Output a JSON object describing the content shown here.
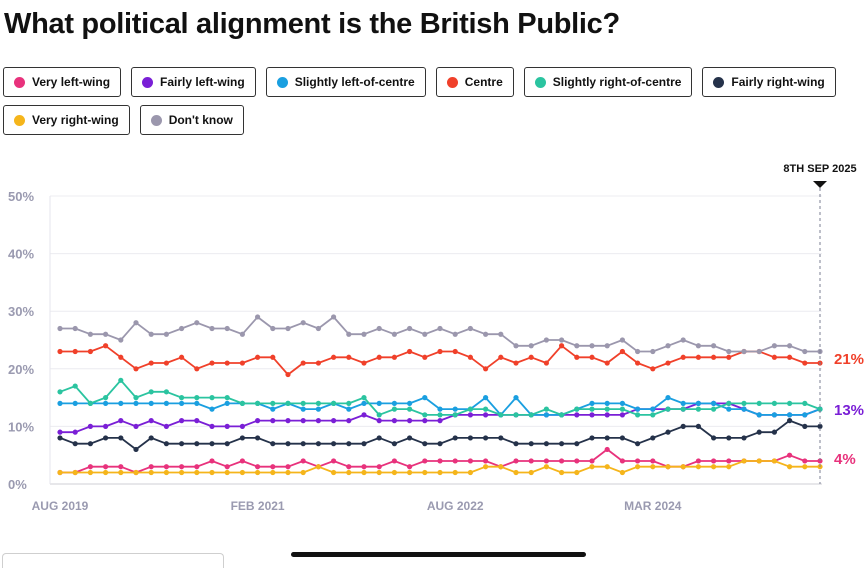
{
  "page": {
    "title": "What political alignment is the British Public?"
  },
  "chart_data": {
    "type": "line",
    "title": "What political alignment is the British Public?",
    "marker_label": "8TH SEP 2025",
    "x_tick_labels": [
      "AUG 2019",
      "FEB 2021",
      "AUG 2022",
      "MAR 2024"
    ],
    "x_tick_positions": [
      0,
      13,
      26,
      39
    ],
    "y_ticks": [
      0,
      10,
      20,
      30,
      40,
      50
    ],
    "y_tick_labels": [
      "0%",
      "10%",
      "20%",
      "30%",
      "40%",
      "50%"
    ],
    "ylim": [
      0,
      50
    ],
    "num_points": 51,
    "series": [
      {
        "name": "Very left-wing",
        "color": "#e8327c",
        "end_label": "4%",
        "values": [
          2,
          2,
          3,
          3,
          3,
          2,
          3,
          3,
          3,
          3,
          4,
          3,
          4,
          3,
          3,
          3,
          4,
          3,
          4,
          3,
          3,
          3,
          4,
          3,
          4,
          4,
          4,
          4,
          4,
          3,
          4,
          4,
          4,
          4,
          4,
          4,
          6,
          4,
          4,
          4,
          3,
          3,
          4,
          4,
          4,
          4,
          4,
          4,
          5,
          4,
          4
        ]
      },
      {
        "name": "Fairly left-wing",
        "color": "#7a1fd6",
        "end_label": "13%",
        "values": [
          9,
          9,
          10,
          10,
          11,
          10,
          11,
          10,
          11,
          11,
          10,
          10,
          10,
          11,
          11,
          11,
          11,
          11,
          11,
          11,
          12,
          11,
          11,
          11,
          11,
          11,
          12,
          12,
          12,
          12,
          12,
          12,
          12,
          12,
          12,
          12,
          12,
          12,
          13,
          13,
          13,
          13,
          14,
          14,
          14,
          13,
          12,
          12,
          12,
          12,
          13
        ]
      },
      {
        "name": "Slightly left-of-centre",
        "color": "#1a9fe0",
        "end_label": "",
        "values": [
          14,
          14,
          14,
          14,
          14,
          14,
          14,
          14,
          14,
          14,
          13,
          14,
          14,
          14,
          13,
          14,
          13,
          13,
          14,
          13,
          14,
          14,
          14,
          14,
          15,
          13,
          13,
          13,
          15,
          12,
          15,
          12,
          12,
          12,
          13,
          14,
          14,
          14,
          13,
          13,
          15,
          14,
          14,
          14,
          13,
          13,
          12,
          12,
          12,
          12,
          13
        ]
      },
      {
        "name": "Centre",
        "color": "#f0402a",
        "end_label": "21%",
        "values": [
          23,
          23,
          23,
          24,
          22,
          20,
          21,
          21,
          22,
          20,
          21,
          21,
          21,
          22,
          22,
          19,
          21,
          21,
          22,
          22,
          21,
          22,
          22,
          23,
          22,
          23,
          23,
          22,
          20,
          22,
          21,
          22,
          21,
          24,
          22,
          22,
          21,
          23,
          21,
          20,
          21,
          22,
          22,
          22,
          22,
          23,
          23,
          22,
          22,
          21,
          21
        ]
      },
      {
        "name": "Slightly right-of-centre",
        "color": "#2bc4a0",
        "end_label": "",
        "values": [
          16,
          17,
          14,
          15,
          18,
          15,
          16,
          16,
          15,
          15,
          15,
          15,
          14,
          14,
          14,
          14,
          14,
          14,
          14,
          14,
          15,
          12,
          13,
          13,
          12,
          12,
          12,
          13,
          13,
          12,
          12,
          12,
          13,
          12,
          13,
          13,
          13,
          13,
          12,
          12,
          13,
          13,
          13,
          13,
          14,
          14,
          14,
          14,
          14,
          14,
          13
        ]
      },
      {
        "name": "Fairly right-wing",
        "color": "#25324a",
        "end_label": "",
        "values": [
          8,
          7,
          7,
          8,
          8,
          6,
          8,
          7,
          7,
          7,
          7,
          7,
          8,
          8,
          7,
          7,
          7,
          7,
          7,
          7,
          7,
          8,
          7,
          8,
          7,
          7,
          8,
          8,
          8,
          8,
          7,
          7,
          7,
          7,
          7,
          8,
          8,
          8,
          7,
          8,
          9,
          10,
          10,
          8,
          8,
          8,
          9,
          9,
          11,
          10,
          10
        ]
      },
      {
        "name": "Very right-wing",
        "color": "#f5b51b",
        "end_label": "",
        "values": [
          2,
          2,
          2,
          2,
          2,
          2,
          2,
          2,
          2,
          2,
          2,
          2,
          2,
          2,
          2,
          2,
          2,
          3,
          2,
          2,
          2,
          2,
          2,
          2,
          2,
          2,
          2,
          2,
          3,
          3,
          2,
          2,
          3,
          2,
          2,
          3,
          3,
          2,
          3,
          3,
          3,
          3,
          3,
          3,
          3,
          4,
          4,
          4,
          3,
          3,
          3
        ]
      },
      {
        "name": "Don't know",
        "color": "#9b97ad",
        "end_label": "",
        "values": [
          27,
          27,
          26,
          26,
          25,
          28,
          26,
          26,
          27,
          28,
          27,
          27,
          26,
          29,
          27,
          27,
          28,
          27,
          29,
          26,
          26,
          27,
          26,
          27,
          26,
          27,
          26,
          27,
          26,
          26,
          24,
          24,
          25,
          25,
          24,
          24,
          24,
          25,
          23,
          23,
          24,
          25,
          24,
          24,
          23,
          23,
          23,
          24,
          24,
          23,
          23
        ]
      }
    ]
  },
  "legend": {
    "rows": [
      [
        "Very left-wing",
        "Fairly left-wing",
        "Slightly left-of-centre",
        "Centre",
        "Slightly right-of-centre",
        "Fairly right-wing"
      ],
      [
        "Very right-wing",
        "Don't know"
      ]
    ]
  }
}
